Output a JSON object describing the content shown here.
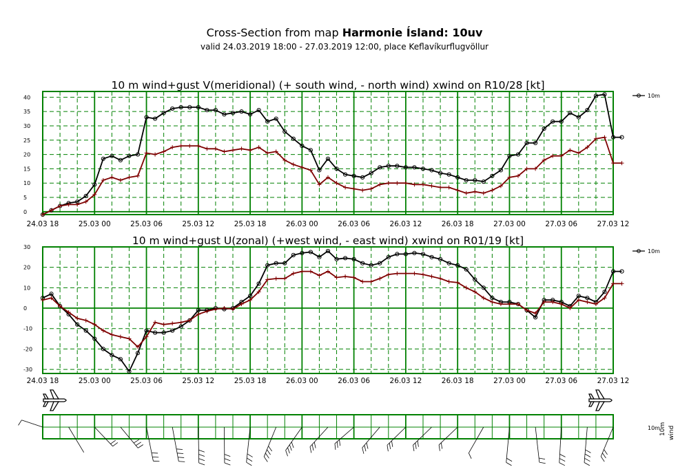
{
  "header": {
    "title_prefix": "Cross-Section from map ",
    "title_bold": "Harmonie Ísland: 10uv",
    "subtitle": "valid 24.03.2019 18:00 - 27.03.2019 12:00, place Keflavíkurflugvöllur"
  },
  "x_ticks": [
    "24.03 18",
    "25.03 00",
    "25.03 06",
    "25.03 12",
    "25.03 18",
    "26.03 00",
    "26.03 06",
    "26.03 12",
    "26.03 18",
    "27.03 00",
    "27.03 06",
    "27.03 12"
  ],
  "colors": {
    "grid": "#008000",
    "wind": "#000000",
    "gust": "#7f0000",
    "panel_border": "#008000"
  },
  "chart_data": [
    {
      "type": "line",
      "title": "10 m wind+gust V(meridional) (+ south wind, - north wind) xwind on R10/28 [kt]",
      "x_range": [
        "24.03.2019 18:00",
        "27.03.2019 12:00"
      ],
      "x_step_hours": 1,
      "ylim": [
        -1,
        42
      ],
      "yticks": [
        0,
        5,
        10,
        15,
        20,
        25,
        30,
        35,
        40
      ],
      "legend": {
        "label": "10m",
        "position": "top-right"
      },
      "series": [
        {
          "name": "10m",
          "marker": "circle",
          "values": [
            -1,
            0.5,
            2,
            3,
            3.5,
            5.5,
            9.5,
            18.5,
            19.5,
            18,
            19.5,
            20,
            33,
            32.5,
            34.5,
            36,
            36.5,
            36.5,
            36.5,
            35.5,
            35.5,
            34,
            34.5,
            35,
            34,
            35.5,
            31.5,
            32.5,
            28,
            25.5,
            23,
            21.5,
            14.5,
            18.5,
            15,
            13,
            12.5,
            12,
            13.5,
            15.5,
            16,
            16,
            15.5,
            15.5,
            15,
            14.5,
            13.5,
            13,
            12,
            11,
            11,
            10.5,
            12.5,
            14.5,
            19.5,
            20,
            24,
            24,
            29,
            31.5,
            31.5,
            34.5,
            33,
            35.5,
            40.5,
            41,
            26,
            26
          ]
        },
        {
          "marker": "plus",
          "values": [
            -1,
            0.5,
            2,
            2.5,
            2.5,
            3.5,
            6,
            11,
            12,
            11,
            12,
            12.5,
            20.5,
            20,
            21,
            22.5,
            23,
            23,
            23,
            22,
            22,
            21,
            21.5,
            22,
            21.5,
            22.5,
            20.5,
            21,
            18,
            16.5,
            15.5,
            14.5,
            9.5,
            12,
            10,
            8.5,
            8,
            7.5,
            8,
            9.5,
            10,
            10,
            10,
            9.5,
            9.5,
            9,
            8.5,
            8.5,
            7.5,
            6.5,
            7,
            6.5,
            7.5,
            9,
            12,
            12.5,
            15,
            15,
            18,
            19.5,
            19.5,
            21.5,
            20.5,
            22.5,
            25.5,
            26,
            17,
            17
          ]
        }
      ]
    },
    {
      "type": "line",
      "title": "10 m wind+gust U(zonal) (+west wind, - east wind) xwind on R01/19 [kt]",
      "x_range": [
        "24.03.2019 18:00",
        "27.03.2019 12:00"
      ],
      "x_step_hours": 1,
      "ylim": [
        -32,
        30
      ],
      "yticks": [
        -30,
        -20,
        -10,
        0,
        10,
        20,
        30
      ],
      "legend": {
        "label": "10m",
        "position": "top-right"
      },
      "series": [
        {
          "name": "10m",
          "marker": "circle",
          "values": [
            5,
            7,
            1,
            -3,
            -8,
            -11,
            -15,
            -20,
            -23,
            -25,
            -31,
            -22,
            -11,
            -12,
            -12,
            -11,
            -9,
            -6,
            -1,
            -1,
            0,
            -0.5,
            0,
            3,
            6,
            12,
            21,
            22,
            22,
            26,
            27,
            27.5,
            25,
            28,
            24,
            24.5,
            24,
            22,
            21,
            22,
            25,
            26.5,
            26.5,
            27,
            26.5,
            25,
            24,
            22,
            21,
            19,
            14,
            10,
            5,
            3,
            3,
            2,
            -1,
            -4.5,
            4,
            4,
            3,
            1,
            6,
            5,
            3,
            8,
            18,
            18
          ]
        },
        {
          "marker": "plus",
          "values": [
            4,
            5,
            1,
            -2,
            -5,
            -6,
            -8,
            -11,
            -13,
            -14,
            -15,
            -19,
            -14,
            -7,
            -8,
            -7.5,
            -7,
            -6,
            -3,
            -1.5,
            -0.5,
            0,
            -0.5,
            2,
            4,
            8,
            14,
            14.5,
            14.5,
            17,
            18,
            18,
            16,
            18,
            15,
            15.5,
            15,
            13,
            13,
            14.5,
            16.5,
            17,
            17,
            17,
            16.5,
            15.5,
            14.5,
            13,
            12.5,
            10,
            8,
            5,
            3,
            2,
            2,
            2,
            -1,
            -2.5,
            3,
            3,
            2,
            0,
            4,
            3,
            2,
            5,
            12,
            12
          ]
        }
      ]
    }
  ],
  "barb_panel": {
    "labels": [
      "10m",
      "10m",
      "wind"
    ]
  }
}
